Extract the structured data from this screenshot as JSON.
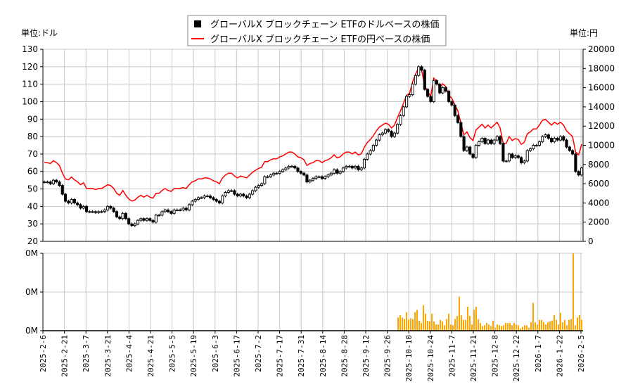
{
  "chart_data": [
    {
      "type": "candlestick",
      "legend_placement": "top-center",
      "grid": true,
      "left_unit_label": "単位:ドル",
      "right_unit_label": "単位:円",
      "left_ylim": [
        20,
        130
      ],
      "left_yticks": [
        20,
        30,
        40,
        50,
        60,
        70,
        80,
        90,
        100,
        110,
        120,
        130
      ],
      "right_ylim": [
        0,
        20000
      ],
      "right_yticks": [
        0,
        2000,
        4000,
        6000,
        8000,
        10000,
        12000,
        14000,
        16000,
        18000,
        20000
      ],
      "x_tick_labels": [
        "2025-2-6",
        "2025-2-21",
        "2025-3-7",
        "2025-3-21",
        "2025-4-4",
        "2025-4-21",
        "2025-5-5",
        "2025-5-19",
        "2025-6-3",
        "2025-6-17",
        "2025-7-2",
        "2025-7-17",
        "2025-7-31",
        "2025-8-14",
        "2025-8-28",
        "2025-9-12",
        "2025-9-26",
        "2025-10-10",
        "2025-10-24",
        "2025-11-7",
        "2025-11-21",
        "2025-12-8",
        "2025-12-22",
        "2026-1-7",
        "2026-1-22",
        "2026-2-5"
      ],
      "series": [
        {
          "name": "グローバルX ブロックチェーン ETFのドルベースの株価",
          "color": "#000000",
          "axis": "left",
          "close": [
            54,
            54,
            53,
            55,
            54,
            52,
            47,
            43,
            42,
            44,
            42,
            41,
            39,
            40,
            37,
            37,
            37,
            36.5,
            37,
            37,
            38,
            40,
            39,
            37,
            34,
            33,
            36,
            33,
            30,
            29,
            30,
            32,
            33,
            32,
            33,
            32,
            31,
            35,
            35,
            37,
            38,
            37,
            36,
            38,
            38,
            38,
            39,
            38,
            41,
            43,
            44,
            45,
            45,
            46,
            46,
            45,
            44,
            43,
            42,
            46,
            48,
            49,
            49,
            47,
            46,
            47,
            46,
            45,
            47,
            49,
            51,
            52,
            53,
            57,
            57,
            58,
            59,
            59,
            60,
            61,
            62,
            63,
            63,
            62,
            60,
            59,
            58,
            54,
            55,
            56,
            57,
            57,
            56,
            57,
            58,
            59,
            61,
            59,
            60,
            62,
            63,
            63,
            62,
            63,
            61,
            62,
            67,
            70,
            72,
            75,
            78,
            81,
            82,
            84,
            83,
            80,
            82,
            87,
            92,
            97,
            103,
            104,
            110,
            115,
            120,
            118,
            107,
            103,
            100,
            112,
            110,
            105,
            108,
            106,
            100,
            98,
            92,
            88,
            80,
            72,
            74,
            70,
            68,
            75,
            77,
            79,
            76,
            78,
            76,
            78,
            80,
            76,
            66,
            66,
            70,
            68,
            69,
            68,
            65,
            66,
            72,
            73,
            75,
            75,
            77,
            80,
            81,
            79,
            77,
            79,
            78,
            80,
            78,
            74,
            72,
            70,
            60,
            58,
            62
          ]
        },
        {
          "name": "グローバルX ブロックチェーン ETFの円ベースの株価",
          "color": "#ff0000",
          "axis": "right",
          "values": [
            8200,
            8200,
            8100,
            8400,
            8200,
            7900,
            7100,
            6500,
            6400,
            6700,
            6400,
            6200,
            5900,
            6100,
            5500,
            5500,
            5500,
            5400,
            5500,
            5500,
            5700,
            5900,
            5800,
            5500,
            5000,
            4800,
            5300,
            4800,
            4400,
            4200,
            4300,
            4600,
            4800,
            4600,
            4800,
            4600,
            4500,
            5000,
            5000,
            5300,
            5500,
            5300,
            5200,
            5500,
            5500,
            5500,
            5600,
            5500,
            5900,
            6200,
            6300,
            6500,
            6500,
            6600,
            6600,
            6500,
            6300,
            6200,
            6000,
            6600,
            6900,
            7100,
            7100,
            6800,
            6600,
            6800,
            6700,
            6600,
            6900,
            7200,
            7400,
            7600,
            7700,
            8300,
            8300,
            8500,
            8600,
            8600,
            8800,
            8900,
            9100,
            9300,
            9300,
            9100,
            8800,
            8700,
            8500,
            7900,
            8100,
            8200,
            8400,
            8400,
            8200,
            8400,
            8500,
            8700,
            9000,
            8700,
            8800,
            9100,
            9300,
            9300,
            9100,
            9300,
            9000,
            9100,
            9800,
            10300,
            10600,
            11000,
            11500,
            11900,
            12100,
            12300,
            12200,
            11800,
            12100,
            12900,
            13600,
            14400,
            15200,
            15400,
            16600,
            17400,
            18100,
            17800,
            16200,
            15600,
            15100,
            17000,
            16700,
            16000,
            16400,
            16100,
            15200,
            14900,
            14200,
            13600,
            12300,
            11100,
            11400,
            10800,
            10500,
            11600,
            11900,
            12200,
            11800,
            12100,
            11800,
            12100,
            12400,
            11800,
            10200,
            10200,
            10900,
            10500,
            10700,
            10600,
            10100,
            10300,
            11200,
            11400,
            11700,
            11700,
            12100,
            12600,
            12700,
            12400,
            12100,
            12400,
            12200,
            12400,
            12100,
            11500,
            11200,
            10900,
            9300,
            9000,
            10100
          ]
        }
      ]
    },
    {
      "type": "bar",
      "color": "#ffa500",
      "ytick_labels": [
        "0M",
        "0M",
        "0M"
      ],
      "ylim": [
        0,
        1
      ],
      "values": [
        0.17,
        0.2,
        0.17,
        0.15,
        0.24,
        0.14,
        0.16,
        0.15,
        0.24,
        0.27,
        0.13,
        0.1,
        0.33,
        0.22,
        0.13,
        0.12,
        0.22,
        0.12,
        0.08,
        0.08,
        0.14,
        0.12,
        0.07,
        0.15,
        0.22,
        0.08,
        0.07,
        0.15,
        0.19,
        0.44,
        0.2,
        0.14,
        0.14,
        0.31,
        0.19,
        0.08,
        0.27,
        0.31,
        0.15,
        0.1,
        0.06,
        0.07,
        0.1,
        0.08,
        0.06,
        0.13,
        0.04,
        0.08,
        0.07,
        0.06,
        0.07,
        0.1,
        0.1,
        0.1,
        0.07,
        0.1,
        0.08,
        0.07,
        0.03,
        0.05,
        0.07,
        0.07,
        0.04,
        0.11,
        0.36,
        0.11,
        0.08,
        0.14,
        0.14,
        0.11,
        0.08,
        0.11,
        0.12,
        0.13,
        0.2,
        0.14,
        0.08,
        0.23,
        0.11,
        0.14,
        0.07,
        0.14,
        0.15,
        1.0,
        0.07,
        0.17,
        0.2,
        0.14
      ]
    }
  ]
}
